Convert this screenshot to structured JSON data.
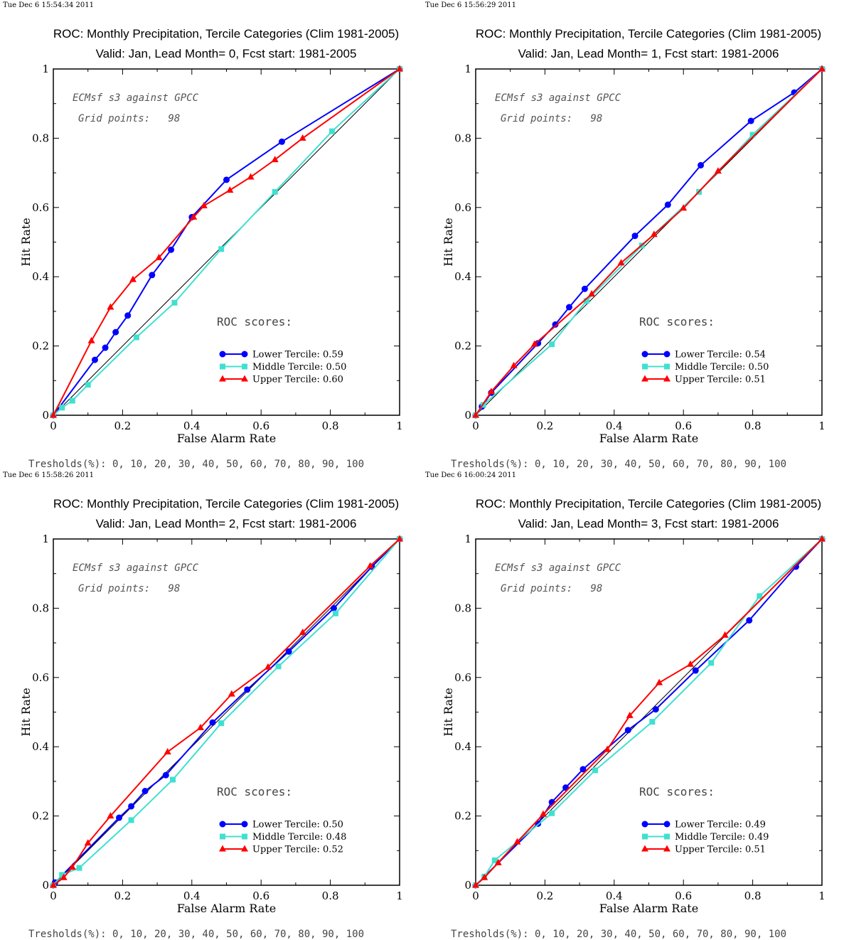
{
  "chart_data": [
    {
      "type": "line",
      "timestamp": "Tue Dec  6 15:54:34 2011",
      "title": "ROC: Monthly Precipitation, Tercile Categories (Clim 1981-2005)",
      "subtitle": "Valid: Jan, Lead Month= 0, Fcst start: 1981-2005",
      "xlabel": "False Alarm Rate",
      "ylabel": "Hit Rate",
      "xlim": [
        0,
        1
      ],
      "ylim": [
        0,
        1
      ],
      "xticks": [
        "0",
        "0.2",
        "0.4",
        "0.6",
        "0.8",
        "1"
      ],
      "yticks": [
        "0",
        "0.2",
        "0.4",
        "0.6",
        "0.8",
        "1"
      ],
      "annotation_1": "ECMsf s3 against GPCC",
      "annotation_2": "Grid points:   98",
      "scores_heading": "ROC scores:",
      "thresholds": "Tresholds(%): 0, 10, 20, 30, 40, 50, 60, 70, 80, 90, 100",
      "series": [
        {
          "name": "Lower Tercile: 0.59",
          "color": "#0000ff",
          "marker": "circle",
          "points": [
            [
              0,
              0
            ],
            [
              0.12,
              0.16
            ],
            [
              0.15,
              0.195
            ],
            [
              0.18,
              0.24
            ],
            [
              0.215,
              0.288
            ],
            [
              0.285,
              0.405
            ],
            [
              0.34,
              0.478
            ],
            [
              0.4,
              0.572
            ],
            [
              0.5,
              0.68
            ],
            [
              0.66,
              0.79
            ],
            [
              1,
              1
            ]
          ]
        },
        {
          "name": "Middle Tercile: 0.50",
          "color": "#40e0d0",
          "marker": "square",
          "points": [
            [
              0,
              0
            ],
            [
              0.025,
              0.022
            ],
            [
              0.055,
              0.042
            ],
            [
              0.1,
              0.088
            ],
            [
              0.24,
              0.225
            ],
            [
              0.35,
              0.325
            ],
            [
              0.485,
              0.48
            ],
            [
              0.64,
              0.645
            ],
            [
              0.805,
              0.82
            ],
            [
              1,
              1
            ]
          ]
        },
        {
          "name": "Upper Tercile: 0.60",
          "color": "#ff0000",
          "marker": "triangle",
          "points": [
            [
              0,
              0
            ],
            [
              0.11,
              0.215
            ],
            [
              0.165,
              0.312
            ],
            [
              0.23,
              0.392
            ],
            [
              0.305,
              0.455
            ],
            [
              0.405,
              0.572
            ],
            [
              0.435,
              0.605
            ],
            [
              0.51,
              0.65
            ],
            [
              0.57,
              0.688
            ],
            [
              0.64,
              0.738
            ],
            [
              0.72,
              0.8
            ],
            [
              1,
              1
            ]
          ]
        }
      ]
    },
    {
      "type": "line",
      "timestamp": "Tue Dec  6 15:56:29 2011",
      "title": "ROC: Monthly Precipitation, Tercile Categories (Clim 1981-2005)",
      "subtitle": "Valid: Jan, Lead Month= 1, Fcst start: 1981-2006",
      "xlabel": "False Alarm Rate",
      "ylabel": "Hit Rate",
      "xlim": [
        0,
        1
      ],
      "ylim": [
        0,
        1
      ],
      "xticks": [
        "0",
        "0.2",
        "0.4",
        "0.6",
        "0.8",
        "1"
      ],
      "yticks": [
        "0",
        "0.2",
        "0.4",
        "0.6",
        "0.8",
        "1"
      ],
      "annotation_1": "ECMsf s3 against GPCC",
      "annotation_2": "Grid points:   98",
      "scores_heading": "ROC scores:",
      "thresholds": "Tresholds(%): 0, 10, 20, 30, 40, 50, 60, 70, 80, 90, 100",
      "series": [
        {
          "name": "Lower Tercile: 0.54",
          "color": "#0000ff",
          "marker": "circle",
          "points": [
            [
              0,
              0
            ],
            [
              0.018,
              0.025
            ],
            [
              0.045,
              0.065
            ],
            [
              0.18,
              0.208
            ],
            [
              0.23,
              0.262
            ],
            [
              0.27,
              0.312
            ],
            [
              0.315,
              0.365
            ],
            [
              0.46,
              0.518
            ],
            [
              0.555,
              0.608
            ],
            [
              0.65,
              0.722
            ],
            [
              0.795,
              0.85
            ],
            [
              0.92,
              0.932
            ],
            [
              1,
              1
            ]
          ]
        },
        {
          "name": "Middle Tercile: 0.50",
          "color": "#40e0d0",
          "marker": "square",
          "points": [
            [
              0,
              0
            ],
            [
              0.022,
              0.03
            ],
            [
              0.22,
              0.205
            ],
            [
              0.32,
              0.33
            ],
            [
              0.48,
              0.49
            ],
            [
              0.645,
              0.645
            ],
            [
              0.8,
              0.81
            ],
            [
              1,
              1
            ]
          ]
        },
        {
          "name": "Upper Tercile: 0.51",
          "color": "#ff0000",
          "marker": "triangle",
          "points": [
            [
              0,
              0
            ],
            [
              0.045,
              0.068
            ],
            [
              0.11,
              0.143
            ],
            [
              0.17,
              0.205
            ],
            [
              0.335,
              0.35
            ],
            [
              0.42,
              0.44
            ],
            [
              0.515,
              0.522
            ],
            [
              0.6,
              0.598
            ],
            [
              0.7,
              0.705
            ],
            [
              1,
              1
            ]
          ]
        }
      ]
    },
    {
      "type": "line",
      "timestamp": "Tue Dec  6 15:58:26 2011",
      "title": "ROC: Monthly Precipitation, Tercile Categories (Clim 1981-2005)",
      "subtitle": "Valid: Jan, Lead Month= 2, Fcst start: 1981-2006",
      "xlabel": "False Alarm Rate",
      "ylabel": "Hit Rate",
      "xlim": [
        0,
        1
      ],
      "ylim": [
        0,
        1
      ],
      "xticks": [
        "0",
        "0.2",
        "0.4",
        "0.6",
        "0.8",
        "1"
      ],
      "yticks": [
        "0",
        "0.2",
        "0.4",
        "0.6",
        "0.8",
        "1"
      ],
      "annotation_1": "ECMsf s3 against GPCC",
      "annotation_2": "Grid points:   98",
      "scores_heading": "ROC scores:",
      "thresholds": "Tresholds(%): 0, 10, 20, 30, 40, 50, 60, 70, 80, 90, 100",
      "series": [
        {
          "name": "Lower Tercile: 0.50",
          "color": "#0000ff",
          "marker": "circle",
          "points": [
            [
              0,
              0
            ],
            [
              0.005,
              0.008
            ],
            [
              0.19,
              0.195
            ],
            [
              0.225,
              0.228
            ],
            [
              0.265,
              0.272
            ],
            [
              0.325,
              0.318
            ],
            [
              0.46,
              0.47
            ],
            [
              0.56,
              0.565
            ],
            [
              0.68,
              0.675
            ],
            [
              0.81,
              0.8
            ],
            [
              0.92,
              0.92
            ],
            [
              1,
              1
            ]
          ]
        },
        {
          "name": "Middle Tercile: 0.48",
          "color": "#40e0d0",
          "marker": "square",
          "points": [
            [
              0,
              0
            ],
            [
              0.025,
              0.03
            ],
            [
              0.075,
              0.05
            ],
            [
              0.225,
              0.188
            ],
            [
              0.345,
              0.305
            ],
            [
              0.485,
              0.468
            ],
            [
              0.65,
              0.632
            ],
            [
              0.815,
              0.785
            ],
            [
              1,
              1
            ]
          ]
        },
        {
          "name": "Upper Tercile: 0.52",
          "color": "#ff0000",
          "marker": "triangle",
          "points": [
            [
              0,
              0
            ],
            [
              0.03,
              0.022
            ],
            [
              0.055,
              0.052
            ],
            [
              0.1,
              0.122
            ],
            [
              0.165,
              0.2
            ],
            [
              0.33,
              0.385
            ],
            [
              0.425,
              0.455
            ],
            [
              0.515,
              0.552
            ],
            [
              0.62,
              0.63
            ],
            [
              0.72,
              0.73
            ],
            [
              0.915,
              0.922
            ],
            [
              1,
              1
            ]
          ]
        }
      ]
    },
    {
      "type": "line",
      "timestamp": "Tue Dec  6 16:00:24 2011",
      "title": "ROC: Monthly Precipitation, Tercile Categories (Clim 1981-2005)",
      "subtitle": "Valid: Jan, Lead Month= 3, Fcst start: 1981-2006",
      "xlabel": "False Alarm Rate",
      "ylabel": "Hit Rate",
      "xlim": [
        0,
        1
      ],
      "ylim": [
        0,
        1
      ],
      "xticks": [
        "0",
        "0.2",
        "0.4",
        "0.6",
        "0.8",
        "1"
      ],
      "yticks": [
        "0",
        "0.2",
        "0.4",
        "0.6",
        "0.8",
        "1"
      ],
      "annotation_1": "ECMsf s3 against GPCC",
      "annotation_2": "Grid points:   98",
      "scores_heading": "ROC scores:",
      "thresholds": "Tresholds(%): 0, 10, 20, 30, 40, 50, 60, 70, 80, 90, 100",
      "series": [
        {
          "name": "Lower Tercile: 0.49",
          "color": "#0000ff",
          "marker": "circle",
          "points": [
            [
              0,
              0
            ],
            [
              0.18,
              0.178
            ],
            [
              0.22,
              0.24
            ],
            [
              0.26,
              0.282
            ],
            [
              0.31,
              0.335
            ],
            [
              0.44,
              0.448
            ],
            [
              0.52,
              0.508
            ],
            [
              0.635,
              0.62
            ],
            [
              0.79,
              0.765
            ],
            [
              0.925,
              0.92
            ],
            [
              1,
              1
            ]
          ]
        },
        {
          "name": "Middle Tercile: 0.49",
          "color": "#40e0d0",
          "marker": "square",
          "points": [
            [
              0,
              0
            ],
            [
              0.025,
              0.025
            ],
            [
              0.055,
              0.072
            ],
            [
              0.22,
              0.208
            ],
            [
              0.345,
              0.332
            ],
            [
              0.51,
              0.472
            ],
            [
              0.68,
              0.642
            ],
            [
              0.82,
              0.835
            ],
            [
              1,
              1
            ]
          ]
        },
        {
          "name": "Upper Tercile: 0.51",
          "color": "#ff0000",
          "marker": "triangle",
          "points": [
            [
              0,
              0
            ],
            [
              0.025,
              0.022
            ],
            [
              0.065,
              0.065
            ],
            [
              0.12,
              0.125
            ],
            [
              0.195,
              0.205
            ],
            [
              0.38,
              0.392
            ],
            [
              0.445,
              0.49
            ],
            [
              0.53,
              0.585
            ],
            [
              0.62,
              0.638
            ],
            [
              0.72,
              0.722
            ],
            [
              1,
              1
            ]
          ]
        }
      ]
    }
  ]
}
